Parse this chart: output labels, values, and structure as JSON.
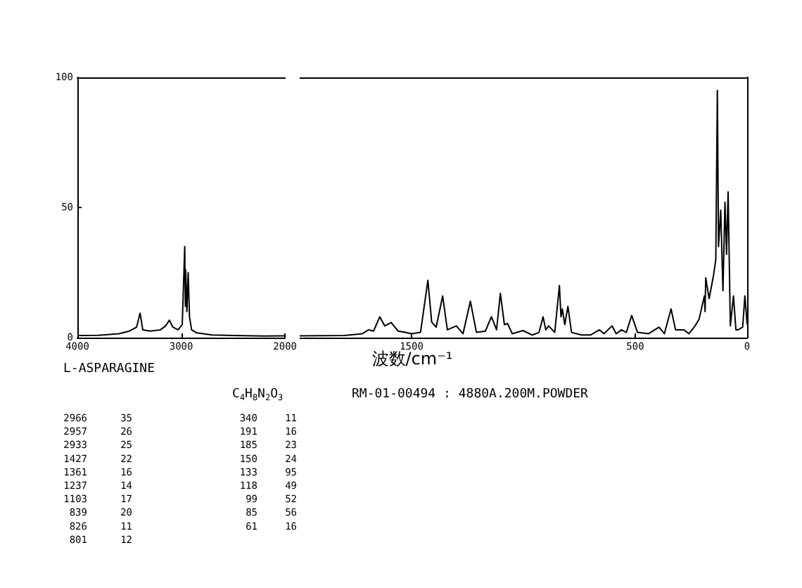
{
  "chart_data": [
    {
      "type": "line",
      "title": "L-ASPARAGINE",
      "subtitle": "C$_{4}$H$_{8}$N$_{2}$O$_{3}$",
      "xlim": [
        4000,
        2000
      ],
      "xticks": [
        4000,
        3000,
        2000
      ],
      "ylim": [
        0,
        100
      ],
      "yticks": [
        0,
        50,
        100
      ],
      "series": [
        {
          "color": "#000000",
          "x": [
            4000,
            3800,
            3600,
            3500,
            3430,
            3396,
            3370,
            3300,
            3200,
            3150,
            3114,
            3080,
            3030,
            2990,
            2966,
            2960,
            2957,
            2945,
            2933,
            2920,
            2900,
            2850,
            2700,
            2500,
            2200,
            2000
          ],
          "values": [
            0.8,
            0.9,
            1.5,
            2.5,
            4,
            9.4,
            3,
            2.5,
            3,
            4.5,
            6.7,
            4,
            3,
            5,
            35,
            12,
            26,
            10,
            25,
            8,
            3,
            1.8,
            1,
            0.8,
            0.6,
            0.7
          ]
        }
      ],
      "annotations": [
        "2966 35",
        "2957 26",
        "2933 25",
        "1427 22",
        "1361 16",
        "1237 14",
        "1103 17",
        "839 20",
        "826 11",
        "801 12",
        "340 11",
        "191 16",
        "185 23",
        "150 24",
        "133 95",
        "118 49",
        "99 52",
        "85 56",
        "61 16"
      ]
    },
    {
      "type": "line",
      "xlabel": "波数/cm⁻¹",
      "xlim": [
        2000,
        0
      ],
      "xticks": [
        1500,
        500,
        0
      ],
      "ylim": [
        0,
        100
      ],
      "tick_labels": "x",
      "series": [
        {
          "color": "#000000",
          "x": [
            2000,
            1800,
            1720,
            1692,
            1670,
            1642,
            1620,
            1591,
            1560,
            1528,
            1500,
            1460,
            1427,
            1410,
            1390,
            1361,
            1340,
            1300,
            1270,
            1237,
            1210,
            1170,
            1143,
            1120,
            1103,
            1085,
            1071,
            1050,
            1002,
            960,
            930,
            912,
            900,
            887,
            860,
            839,
            832,
            826,
            815,
            801,
            785,
            740,
            700,
            660,
            640,
            604,
            585,
            562,
            540,
            516,
            490,
            440,
            394,
            370,
            340,
            320,
            283,
            260,
            237,
            215,
            191,
            188,
            185,
            170,
            150,
            140,
            133,
            128,
            118,
            108,
            99,
            92,
            85,
            75,
            61,
            50,
            40,
            20,
            10,
            0
          ],
          "values": [
            0.7,
            0.8,
            1.5,
            3,
            2.5,
            8,
            4.5,
            5.8,
            2.5,
            2,
            1.5,
            2,
            22,
            6,
            4,
            16,
            3,
            4.5,
            1.5,
            14,
            2,
            2.5,
            8,
            3,
            17,
            5,
            5.4,
            1.5,
            2.7,
            1,
            2,
            8,
            3,
            4.5,
            2,
            20,
            8,
            11,
            5,
            12,
            2,
            1,
            1,
            3,
            1.5,
            4.5,
            1.5,
            3,
            2,
            8.5,
            2,
            1.5,
            4,
            1.5,
            11,
            3,
            3,
            1.5,
            4,
            7,
            16,
            10,
            23,
            15,
            24,
            30,
            95,
            35,
            49,
            18,
            52,
            32,
            56,
            4.5,
            16,
            3,
            3,
            4,
            16,
            5
          ]
        }
      ],
      "annotations": [
        "RM-01-00494 : 4880A.200M.POWDER"
      ]
    }
  ]
}
